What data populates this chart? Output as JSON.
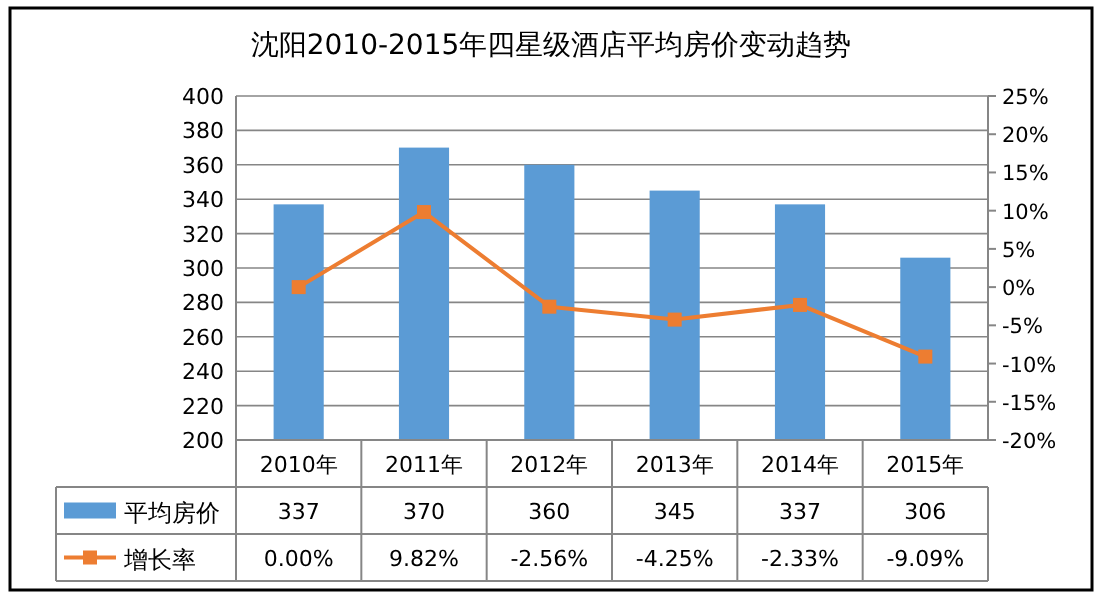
{
  "chart_data": {
    "type": "bar",
    "title": "沈阳2010-2015年四星级酒店平均房价变动趋势",
    "categories": [
      "2010年",
      "2011年",
      "2012年",
      "2013年",
      "2014年",
      "2015年"
    ],
    "series": [
      {
        "name": "平均房价",
        "color": "#5b9bd5",
        "values": [
          337,
          370,
          360,
          345,
          337,
          306
        ]
      },
      {
        "name": "增长率",
        "type": "line",
        "axis": "y2",
        "color": "#ed7d31",
        "marker": "square",
        "values": [
          0.0,
          9.82,
          -2.56,
          -4.25,
          -2.33,
          -9.09
        ],
        "value_labels": [
          "0.00%",
          "9.82%",
          "-2.56%",
          "-4.25%",
          "-2.33%",
          "-9.09%"
        ]
      }
    ],
    "ylim": [
      200,
      400
    ],
    "yticks": [
      200,
      220,
      240,
      260,
      280,
      300,
      320,
      340,
      360,
      380,
      400
    ],
    "y2lim": [
      -20,
      25
    ],
    "y2ticks": [
      {
        "value": -20,
        "label": "-20%"
      },
      {
        "value": -15,
        "label": "-15%"
      },
      {
        "value": -10,
        "label": "-10%"
      },
      {
        "value": -5,
        "label": "-5%"
      },
      {
        "value": 0,
        "label": "0%"
      },
      {
        "value": 5,
        "label": "5%"
      },
      {
        "value": 10,
        "label": "10%"
      },
      {
        "value": 15,
        "label": "15%"
      },
      {
        "value": 20,
        "label": "20%"
      },
      {
        "value": 25,
        "label": "25%"
      }
    ],
    "grid": "y",
    "legend": "bottom",
    "data_labels": true
  }
}
